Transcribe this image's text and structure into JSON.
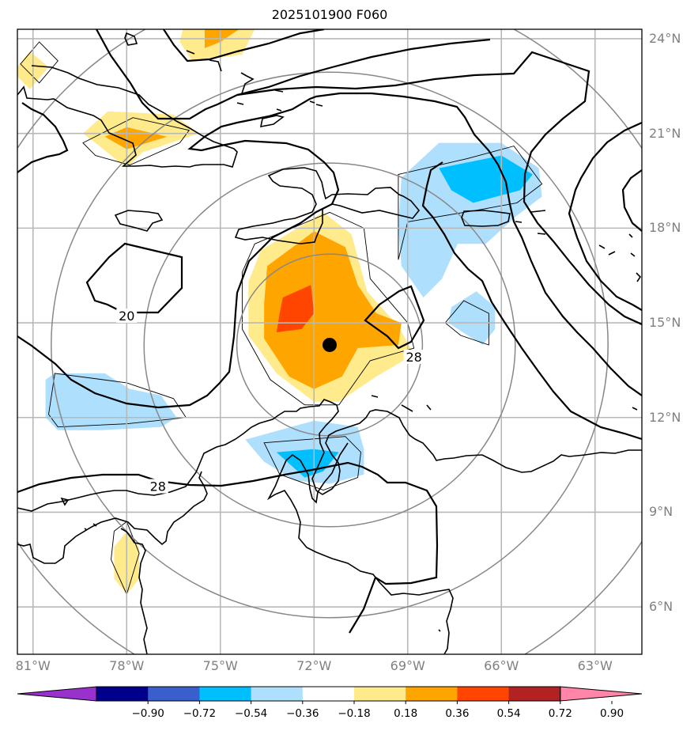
{
  "title": "2025101900 F060",
  "map": {
    "extent": {
      "lon_min": -81.5,
      "lon_max": -61.5,
      "lat_min": 4.5,
      "lat_max": 24.3
    },
    "lat_ticks": [
      {
        "value": 24,
        "label": "24°N"
      },
      {
        "value": 21,
        "label": "21°N"
      },
      {
        "value": 18,
        "label": "18°N"
      },
      {
        "value": 15,
        "label": "15°N"
      },
      {
        "value": 12,
        "label": "12°N"
      },
      {
        "value": 9,
        "label": "9°N"
      },
      {
        "value": 6,
        "label": "6°N"
      }
    ],
    "lon_ticks": [
      {
        "value": -81,
        "label": "81°W"
      },
      {
        "value": -78,
        "label": "78°W"
      },
      {
        "value": -75,
        "label": "75°W"
      },
      {
        "value": -72,
        "label": "72°W"
      },
      {
        "value": -69,
        "label": "69°W"
      },
      {
        "value": -66,
        "label": "66°W"
      },
      {
        "value": -63,
        "label": "63°W"
      }
    ],
    "storm_center": {
      "lon": -71.5,
      "lat": 14.3
    },
    "range_rings_deg": [
      3,
      6,
      9,
      12
    ],
    "contour_labels": [
      {
        "text": "20",
        "lon": -78.0,
        "lat": 15.2
      },
      {
        "text": "28",
        "lon": -68.8,
        "lat": 13.9
      },
      {
        "text": "28",
        "lon": -77.0,
        "lat": 9.8
      }
    ],
    "shaded_regions": [
      {
        "level": "0.18-0.36",
        "color": "#FFEA8C",
        "name": "yellow-center",
        "pts": [
          [
            -73.7,
            17.3
          ],
          [
            -71.7,
            18.5
          ],
          [
            -70.8,
            17.8
          ],
          [
            -70.3,
            16.0
          ],
          [
            -69.3,
            14.9
          ],
          [
            -68.8,
            14.0
          ],
          [
            -70.0,
            13.3
          ],
          [
            -71.2,
            12.5
          ],
          [
            -72.0,
            12.5
          ],
          [
            -73.2,
            13.4
          ],
          [
            -74.1,
            14.6
          ],
          [
            -74.1,
            16.3
          ]
        ]
      },
      {
        "level": "0.36-0.54",
        "color": "#FFA500",
        "name": "orange-center",
        "pts": [
          [
            -73.5,
            16.8
          ],
          [
            -72.0,
            17.9
          ],
          [
            -71.0,
            17.4
          ],
          [
            -70.6,
            16.2
          ],
          [
            -70.0,
            15.3
          ],
          [
            -69.2,
            15.0
          ],
          [
            -69.3,
            14.3
          ],
          [
            -70.6,
            14.2
          ],
          [
            -71.1,
            13.3
          ],
          [
            -72.0,
            12.9
          ],
          [
            -72.8,
            13.3
          ],
          [
            -73.6,
            14.5
          ],
          [
            -73.6,
            15.6
          ]
        ]
      },
      {
        "level": "0.54-0.72",
        "color": "#FF4500",
        "name": "red-center",
        "pts": [
          [
            -73.0,
            15.8
          ],
          [
            -72.1,
            16.2
          ],
          [
            -72.0,
            15.3
          ],
          [
            -72.4,
            14.8
          ],
          [
            -73.2,
            14.7
          ],
          [
            -73.1,
            15.3
          ]
        ]
      },
      {
        "level": "0.18-0.36",
        "color": "#FFEA8C",
        "name": "yellow-cuba",
        "pts": [
          [
            -79.4,
            21.0
          ],
          [
            -78.6,
            21.7
          ],
          [
            -76.5,
            21.6
          ],
          [
            -75.7,
            21.0
          ],
          [
            -77.5,
            20.4
          ],
          [
            -78.0,
            19.9
          ],
          [
            -79.0,
            20.7
          ]
        ]
      },
      {
        "level": "0.36-0.54",
        "color": "#FFA500",
        "name": "orange-cuba",
        "pts": [
          [
            -78.7,
            20.9
          ],
          [
            -78.0,
            21.2
          ],
          [
            -76.7,
            20.9
          ],
          [
            -78.0,
            20.5
          ]
        ]
      },
      {
        "level": "0.18-0.36",
        "color": "#FFEA8C",
        "name": "yellow-bahamas",
        "pts": [
          [
            -76.2,
            24.3
          ],
          [
            -73.9,
            24.3
          ],
          [
            -74.3,
            23.5
          ],
          [
            -75.0,
            23.4
          ],
          [
            -75.9,
            23.3
          ],
          [
            -76.3,
            23.9
          ]
        ]
      },
      {
        "level": "0.36-0.54",
        "color": "#FFA500",
        "name": "orange-bahamas",
        "pts": [
          [
            -75.5,
            24.3
          ],
          [
            -74.4,
            24.3
          ],
          [
            -75.0,
            23.9
          ],
          [
            -75.5,
            23.7
          ]
        ]
      },
      {
        "level": "0.18-0.36",
        "color": "#FFEA8C",
        "name": "yellow-nw",
        "pts": [
          [
            -81.5,
            23.1
          ],
          [
            -81.1,
            23.6
          ],
          [
            -80.5,
            23.1
          ],
          [
            -81.1,
            22.4
          ],
          [
            -81.5,
            22.8
          ]
        ]
      },
      {
        "level": "0.18-0.36",
        "color": "#FFEA8C",
        "name": "yellow-panama",
        "pts": [
          [
            -78.4,
            7.9
          ],
          [
            -78.0,
            8.4
          ],
          [
            -77.6,
            7.9
          ],
          [
            -77.6,
            6.9
          ],
          [
            -78.0,
            6.4
          ],
          [
            -78.4,
            6.9
          ]
        ]
      },
      {
        "level": "-0.36--0.18",
        "color": "#AEDFFC",
        "name": "lightblue-pr",
        "pts": [
          [
            -69.2,
            19.6
          ],
          [
            -68.0,
            20.7
          ],
          [
            -66.0,
            20.7
          ],
          [
            -64.8,
            19.9
          ],
          [
            -64.7,
            19.0
          ],
          [
            -65.5,
            18.4
          ],
          [
            -66.5,
            17.5
          ],
          [
            -67.4,
            17.5
          ],
          [
            -67.9,
            16.4
          ],
          [
            -68.5,
            15.8
          ],
          [
            -69.2,
            16.8
          ],
          [
            -69.3,
            18.0
          ]
        ]
      },
      {
        "level": "-0.54--0.36",
        "color": "#00BFFF",
        "name": "blue-pr",
        "pts": [
          [
            -68.0,
            19.9
          ],
          [
            -66.0,
            20.3
          ],
          [
            -65.0,
            19.7
          ],
          [
            -65.4,
            19.2
          ],
          [
            -66.9,
            18.8
          ],
          [
            -67.6,
            19.2
          ]
        ]
      },
      {
        "level": "-0.36--0.18",
        "color": "#AEDFFC",
        "name": "lightblue-east",
        "pts": [
          [
            -67.6,
            15.5
          ],
          [
            -66.8,
            16.0
          ],
          [
            -66.2,
            15.5
          ],
          [
            -66.2,
            14.8
          ],
          [
            -66.6,
            14.3
          ],
          [
            -67.7,
            15.0
          ]
        ]
      },
      {
        "level": "-0.36--0.18",
        "color": "#AEDFFC",
        "name": "lightblue-west",
        "pts": [
          [
            -80.6,
            13.2
          ],
          [
            -80.3,
            13.4
          ],
          [
            -78.7,
            13.4
          ],
          [
            -77.9,
            12.9
          ],
          [
            -76.9,
            12.7
          ],
          [
            -76.4,
            12.0
          ],
          [
            -76.9,
            11.7
          ],
          [
            -78.8,
            11.6
          ],
          [
            -80.2,
            11.6
          ],
          [
            -80.6,
            12.0
          ]
        ]
      },
      {
        "level": "-0.36--0.18",
        "color": "#AEDFFC",
        "name": "lightblue-south",
        "pts": [
          [
            -74.2,
            11.3
          ],
          [
            -72.0,
            11.9
          ],
          [
            -70.6,
            11.7
          ],
          [
            -70.4,
            11.0
          ],
          [
            -70.4,
            10.2
          ],
          [
            -71.5,
            9.9
          ],
          [
            -72.6,
            10.0
          ],
          [
            -73.6,
            10.6
          ]
        ]
      },
      {
        "level": "-0.54--0.36",
        "color": "#00BFFF",
        "name": "blue-south",
        "pts": [
          [
            -73.2,
            10.9
          ],
          [
            -72.0,
            11.0
          ],
          [
            -71.2,
            10.9
          ],
          [
            -71.7,
            10.3
          ],
          [
            -72.3,
            10.1
          ]
        ]
      }
    ],
    "colorbar": {
      "ticks": [
        "−0.90",
        "−0.72",
        "−0.54",
        "−0.36",
        "−0.18",
        "0.18",
        "0.36",
        "0.54",
        "0.72",
        "0.90"
      ],
      "colors": [
        "#9932CC",
        "#00008B",
        "#3A5FCD",
        "#00BFFF",
        "#AEDFFC",
        "#FFFFFF",
        "#FFEA8C",
        "#FFA500",
        "#FF4500",
        "#B22222",
        "#FF85A9"
      ]
    }
  }
}
